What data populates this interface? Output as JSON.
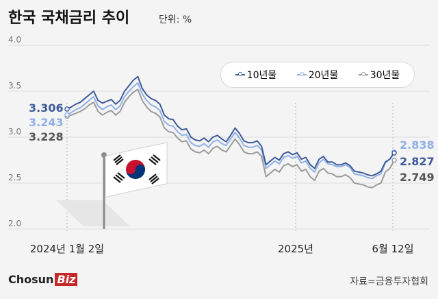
{
  "header": {
    "title": "한국 국채금리 추이",
    "unit": "단위: %"
  },
  "colors": {
    "y10": "#3d5a99",
    "y20": "#8fb0e6",
    "y30": "#9a9a9a"
  },
  "chart_data": {
    "type": "line",
    "title": "한국 국채금리 추이",
    "ylim": [
      2.0,
      4.0
    ],
    "yticks": [
      "4.0",
      "3.5",
      "3.0",
      "2.5",
      "2.0"
    ],
    "xticks": [
      "2024년 1월 2일",
      "2025년",
      "6월 12일"
    ],
    "legend_position": "top-right",
    "series": [
      {
        "name": "10년물",
        "color": "#3d5a99",
        "values": [
          3.306,
          3.33,
          3.36,
          3.38,
          3.42,
          3.46,
          3.5,
          3.4,
          3.37,
          3.39,
          3.41,
          3.36,
          3.4,
          3.5,
          3.56,
          3.62,
          3.66,
          3.53,
          3.46,
          3.42,
          3.4,
          3.36,
          3.24,
          3.2,
          3.19,
          3.12,
          3.08,
          3.09,
          3.0,
          2.97,
          2.96,
          2.99,
          2.95,
          3.0,
          3.02,
          2.98,
          2.95,
          3.02,
          3.1,
          3.04,
          2.96,
          2.94,
          2.94,
          2.96,
          2.9,
          2.7,
          2.74,
          2.78,
          2.75,
          2.82,
          2.84,
          2.81,
          2.83,
          2.76,
          2.78,
          2.7,
          2.66,
          2.76,
          2.79,
          2.73,
          2.73,
          2.7,
          2.7,
          2.72,
          2.69,
          2.63,
          2.62,
          2.61,
          2.59,
          2.58,
          2.6,
          2.63,
          2.73,
          2.76,
          2.827
        ]
      },
      {
        "name": "20년물",
        "color": "#8fb0e6",
        "values": [
          3.243,
          3.27,
          3.3,
          3.32,
          3.36,
          3.4,
          3.44,
          3.34,
          3.3,
          3.33,
          3.35,
          3.3,
          3.34,
          3.44,
          3.5,
          3.55,
          3.59,
          3.47,
          3.4,
          3.35,
          3.33,
          3.29,
          3.17,
          3.13,
          3.12,
          3.06,
          3.02,
          3.03,
          2.94,
          2.91,
          2.9,
          2.93,
          2.89,
          2.95,
          2.97,
          2.93,
          2.91,
          2.98,
          3.05,
          2.99,
          2.91,
          2.89,
          2.89,
          2.91,
          2.86,
          2.66,
          2.7,
          2.74,
          2.71,
          2.78,
          2.8,
          2.77,
          2.79,
          2.72,
          2.74,
          2.66,
          2.62,
          2.72,
          2.76,
          2.71,
          2.7,
          2.68,
          2.68,
          2.7,
          2.67,
          2.6,
          2.59,
          2.58,
          2.56,
          2.55,
          2.58,
          2.6,
          2.72,
          2.76,
          2.838
        ]
      },
      {
        "name": "30년물",
        "color": "#9a9a9a",
        "values": [
          3.228,
          3.24,
          3.26,
          3.28,
          3.31,
          3.35,
          3.38,
          3.28,
          3.24,
          3.27,
          3.29,
          3.24,
          3.28,
          3.38,
          3.44,
          3.49,
          3.52,
          3.4,
          3.33,
          3.28,
          3.26,
          3.22,
          3.1,
          3.06,
          3.05,
          2.99,
          2.95,
          2.96,
          2.87,
          2.84,
          2.83,
          2.86,
          2.82,
          2.88,
          2.9,
          2.86,
          2.84,
          2.91,
          2.98,
          2.92,
          2.84,
          2.82,
          2.82,
          2.84,
          2.79,
          2.57,
          2.61,
          2.65,
          2.62,
          2.69,
          2.71,
          2.68,
          2.7,
          2.63,
          2.65,
          2.57,
          2.53,
          2.63,
          2.66,
          2.61,
          2.6,
          2.57,
          2.57,
          2.59,
          2.56,
          2.5,
          2.49,
          2.48,
          2.46,
          2.45,
          2.48,
          2.5,
          2.62,
          2.66,
          2.749
        ]
      }
    ],
    "start_labels": [
      "3.306",
      "3.243",
      "3.228"
    ],
    "end_labels": [
      "2.838",
      "2.827",
      "2.749"
    ]
  },
  "footer": {
    "brand": "Chosun",
    "brand_biz": "Biz",
    "source": "자료=금융투자협회"
  }
}
